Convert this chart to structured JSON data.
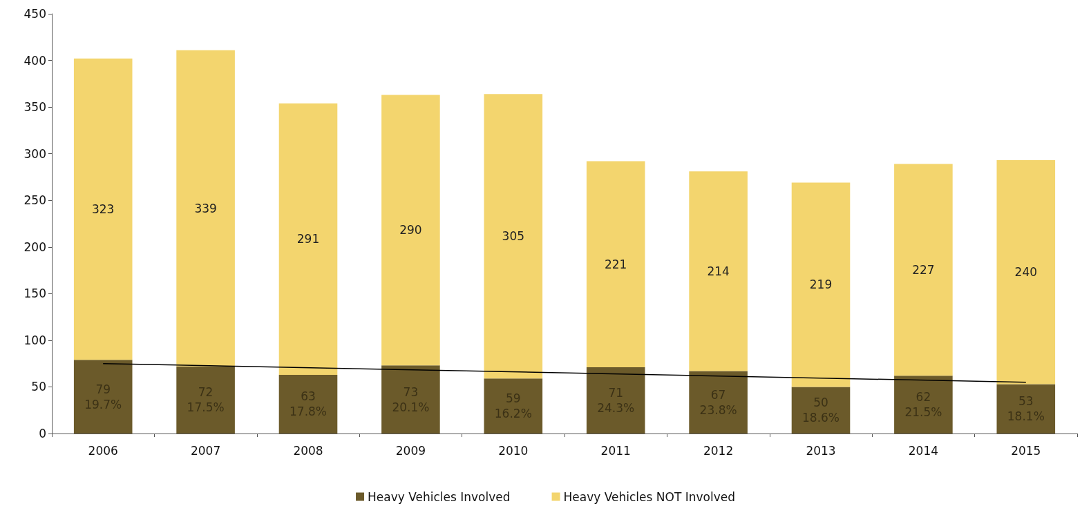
{
  "chart_data": {
    "type": "bar",
    "stacked": true,
    "categories": [
      "2006",
      "2007",
      "2008",
      "2009",
      "2010",
      "2011",
      "2012",
      "2013",
      "2014",
      "2015"
    ],
    "series": [
      {
        "name": "Heavy Vehicles Involved",
        "color": "#6b5a2a",
        "values": [
          79,
          72,
          63,
          73,
          59,
          71,
          67,
          50,
          62,
          53
        ],
        "value_labels": [
          "79\n19.7%",
          "72\n17.5%",
          "63\n17.8%",
          "73\n20.1%",
          "59\n16.2%",
          "71\n24.3%",
          "67\n23.8%",
          "50\n18.6%",
          "62\n21.5%",
          "53\n18.1%"
        ]
      },
      {
        "name": "Heavy Vehicles NOT Involved",
        "color": "#f3d56e",
        "values": [
          323,
          339,
          291,
          290,
          305,
          221,
          214,
          219,
          227,
          240
        ],
        "value_labels": [
          "323",
          "339",
          "291",
          "290",
          "305",
          "221",
          "214",
          "219",
          "227",
          "240"
        ]
      },
      {
        "type": "line",
        "color": "#000000",
        "values": [
          75,
          null,
          null,
          null,
          null,
          null,
          null,
          null,
          null,
          55
        ]
      }
    ],
    "ylim": [
      0,
      450
    ],
    "yticks": [
      0,
      50,
      100,
      150,
      200,
      250,
      300,
      350,
      400,
      450
    ],
    "grid": false,
    "legend": "bottom",
    "marker": "none"
  }
}
